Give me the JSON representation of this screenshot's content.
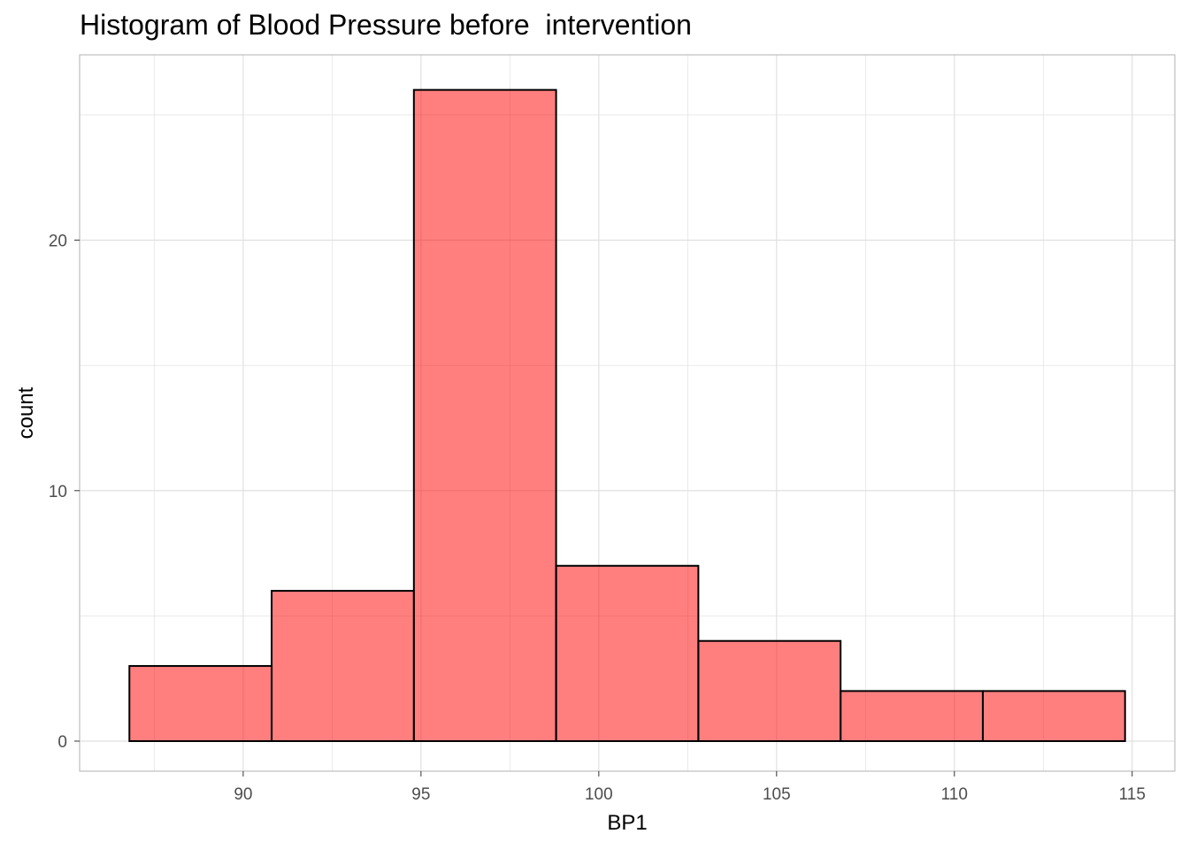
{
  "chart_data": {
    "type": "bar",
    "title": "Histogram of Blood Pressure before  intervention",
    "xlabel": "BP1",
    "ylabel": "count",
    "bins": [
      {
        "x0": 86.8,
        "x1": 90.8,
        "count": 3
      },
      {
        "x0": 90.8,
        "x1": 94.8,
        "count": 6
      },
      {
        "x0": 94.8,
        "x1": 98.8,
        "count": 26
      },
      {
        "x0": 98.8,
        "x1": 102.8,
        "count": 7
      },
      {
        "x0": 102.8,
        "x1": 106.8,
        "count": 4
      },
      {
        "x0": 106.8,
        "x1": 110.8,
        "count": 2
      },
      {
        "x0": 110.8,
        "x1": 114.8,
        "count": 2
      }
    ],
    "xlim": [
      85.4,
      116.2
    ],
    "ylim": [
      -1.2,
      27.4
    ],
    "x_ticks": [
      90,
      95,
      100,
      105,
      110,
      115
    ],
    "y_ticks": [
      0,
      10,
      20
    ],
    "bar_fill": "#ff0000",
    "bar_fill_opacity": 0.5,
    "bar_stroke": "#000000",
    "grid": true,
    "grid_color": "#dedede"
  }
}
